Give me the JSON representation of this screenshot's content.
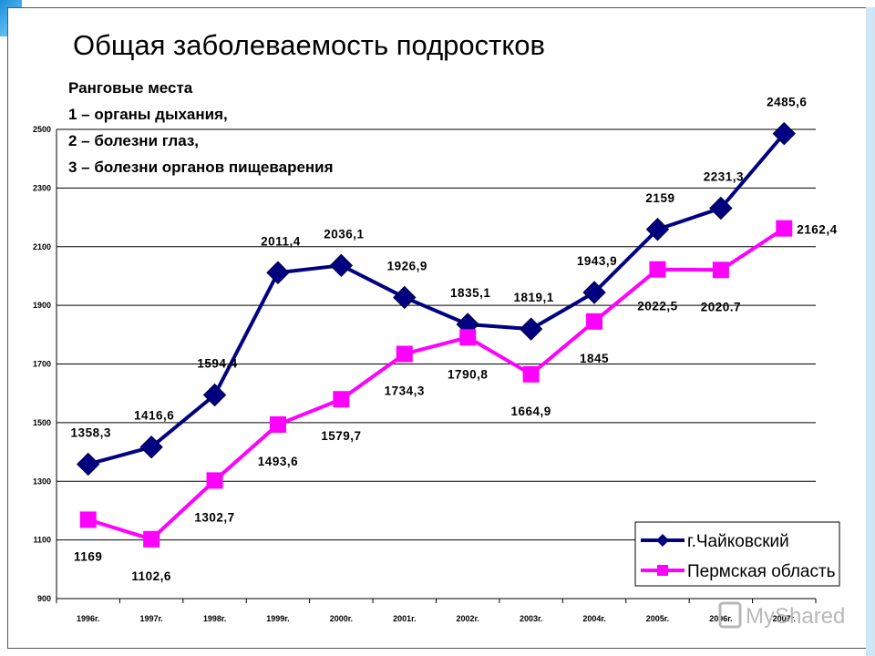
{
  "chart_data": {
    "type": "line",
    "title": "Общая заболеваемость подростков",
    "notes": [
      "Ранговые места",
      "1 – органы дыхания,",
      "2 – болезни глаз,",
      "3 – болезни органов пищеварения"
    ],
    "categories": [
      "1996г.",
      "1997г.",
      "1998г.",
      "1999г.",
      "2000г.",
      "2001г.",
      "2002г.",
      "2003г.",
      "2004г.",
      "2005г.",
      "2006г.",
      "2007г."
    ],
    "ylim": [
      900,
      2500
    ],
    "yticks": [
      900,
      1100,
      1300,
      1500,
      1700,
      1900,
      2100,
      2300,
      2500
    ],
    "grid": true,
    "legend_position": "bottom-right",
    "series": [
      {
        "name": "г.Чайковский",
        "color": "#000080",
        "marker": "diamond",
        "values": [
          1358.3,
          1416.6,
          1594.4,
          2011.4,
          2036.1,
          1926.9,
          1835.1,
          1819.1,
          1943.9,
          2159,
          2231.3,
          2485.6
        ],
        "labels": [
          "1358,3",
          "1416,6",
          "1594,4",
          "2011,4",
          "2036,1",
          "1926,9",
          "1835,1",
          "1819,1",
          "1943,9",
          "2159",
          "2231,3",
          "2485,6"
        ]
      },
      {
        "name": "Пермская область",
        "color": "#FF00FF",
        "marker": "square",
        "values": [
          1169,
          1102.6,
          1302.7,
          1493.6,
          1579.7,
          1734.3,
          1790.8,
          1664.9,
          1845,
          2022.5,
          2020.7,
          2162.4
        ],
        "labels": [
          "1169",
          "1102,6",
          "1302,7",
          "1493,6",
          "1579,7",
          "1734,3",
          "1790,8",
          "1664,9",
          "1845",
          "2022,5",
          "2020.7",
          "2162,4"
        ]
      }
    ]
  },
  "watermark": "MyShared"
}
